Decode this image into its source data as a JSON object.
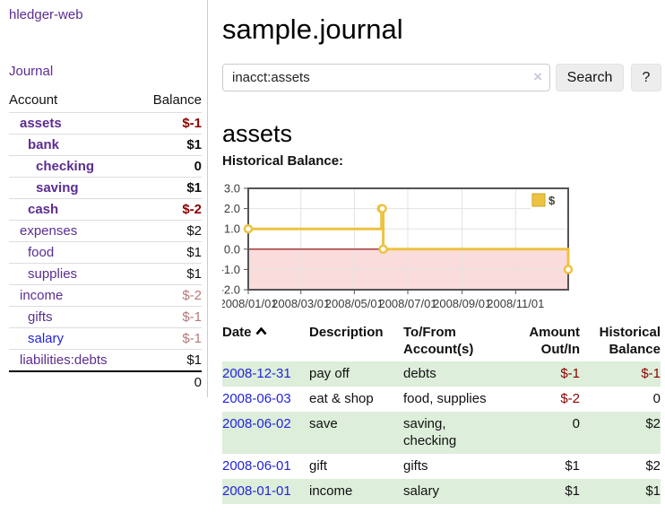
{
  "app": {
    "brand": "hledger-web",
    "nav_journal": "Journal"
  },
  "sidebar": {
    "header": {
      "account": "Account",
      "balance": "Balance"
    },
    "accounts": [
      {
        "name": "assets",
        "indent": 0,
        "bold": true,
        "link": "purple",
        "balance": "$-1",
        "balance_style": "neg"
      },
      {
        "name": "bank",
        "indent": 1,
        "bold": true,
        "link": "purple",
        "balance": "$1",
        "balance_style": "plain"
      },
      {
        "name": "checking",
        "indent": 2,
        "bold": true,
        "link": "purple",
        "balance": "0",
        "balance_style": "plain"
      },
      {
        "name": "saving",
        "indent": 2,
        "bold": true,
        "link": "purple",
        "balance": "$1",
        "balance_style": "plain"
      },
      {
        "name": "cash",
        "indent": 1,
        "bold": true,
        "link": "purple",
        "balance": "$-2",
        "balance_style": "neg"
      },
      {
        "name": "expenses",
        "indent": 0,
        "bold": false,
        "link": "purple",
        "balance": "$2",
        "balance_style": "plain"
      },
      {
        "name": "food",
        "indent": 1,
        "bold": false,
        "link": "purple",
        "balance": "$1",
        "balance_style": "plain"
      },
      {
        "name": "supplies",
        "indent": 1,
        "bold": false,
        "link": "purple",
        "balance": "$1",
        "balance_style": "plain"
      },
      {
        "name": "income",
        "indent": 0,
        "bold": false,
        "link": "purple",
        "balance": "$-2",
        "balance_style": "rose"
      },
      {
        "name": "gifts",
        "indent": 1,
        "bold": false,
        "link": "purple",
        "balance": "$-1",
        "balance_style": "rose"
      },
      {
        "name": "salary",
        "indent": 1,
        "bold": false,
        "link": "blue",
        "balance": "$-1",
        "balance_style": "rose"
      },
      {
        "name": "liabilities:debts",
        "indent": 0,
        "bold": false,
        "link": "purple",
        "balance": "$1",
        "balance_style": "plain"
      }
    ],
    "total": "0"
  },
  "header": {
    "title": "sample.journal"
  },
  "search": {
    "value": "inacct:assets",
    "clear_icon": "×",
    "button_label": "Search",
    "help_label": "?"
  },
  "account_page": {
    "heading": "assets",
    "chart_label": "Historical Balance:"
  },
  "chart_data": {
    "type": "line",
    "step": true,
    "title": "Historical Balance:",
    "series": [
      {
        "name": "$",
        "color": "#edc240",
        "points": [
          {
            "x": "2008-01-01",
            "y": 1
          },
          {
            "x": "2008-06-01",
            "y": 2
          },
          {
            "x": "2008-06-02",
            "y": 2
          },
          {
            "x": "2008-06-03",
            "y": 0
          },
          {
            "x": "2008-12-31",
            "y": -1
          }
        ]
      }
    ],
    "xlim": [
      "2008-01-01",
      "2008-12-31"
    ],
    "ylim": [
      -2,
      3
    ],
    "x_ticks": [
      "2008/01/01",
      "2008/03/01",
      "2008/05/01",
      "2008/07/01",
      "2008/09/01",
      "2008/11/01"
    ],
    "y_ticks": [
      "3.0",
      "2.0",
      "1.0",
      "0.0",
      "-1.0",
      "-2.0"
    ],
    "grid": true,
    "legend_position": "top-right",
    "colors": {
      "line": "#edc240",
      "point_fill": "#ffffff",
      "negative_region": "#fbdcdc",
      "zero_line": "#8b0000",
      "gridline": "#e3e3e3",
      "border": "#545454",
      "tick_label": "#3a3a3a",
      "legend_text": "#44462e"
    }
  },
  "register": {
    "columns": [
      {
        "lines": [
          "Date"
        ],
        "align": "left",
        "sorted_asc": true
      },
      {
        "lines": [
          "Description"
        ],
        "align": "left"
      },
      {
        "lines": [
          "To/From",
          "Account(s)"
        ],
        "align": "left"
      },
      {
        "lines": [
          "Amount",
          "Out/In"
        ],
        "align": "right"
      },
      {
        "lines": [
          "Historical",
          "Balance"
        ],
        "align": "right"
      }
    ],
    "rows": [
      {
        "date": "2008-12-31",
        "description": "pay off",
        "accounts": "debts",
        "amount": "$-1",
        "amount_neg": true,
        "balance": "$-1",
        "balance_neg": true,
        "green": true
      },
      {
        "date": "2008-06-03",
        "description": "eat & shop",
        "accounts": "food, supplies",
        "amount": "$-2",
        "amount_neg": true,
        "balance": "0",
        "balance_neg": false,
        "green": false
      },
      {
        "date": "2008-06-02",
        "description": "save",
        "accounts": "saving,\nchecking",
        "amount": "0",
        "amount_neg": false,
        "balance": "$2",
        "balance_neg": false,
        "green": true
      },
      {
        "date": "2008-06-01",
        "description": "gift",
        "accounts": "gifts",
        "amount": "$1",
        "amount_neg": false,
        "balance": "$2",
        "balance_neg": false,
        "green": false
      },
      {
        "date": "2008-01-01",
        "description": "income",
        "accounts": "salary",
        "amount": "$1",
        "amount_neg": false,
        "balance": "$1",
        "balance_neg": false,
        "green": true
      }
    ]
  }
}
